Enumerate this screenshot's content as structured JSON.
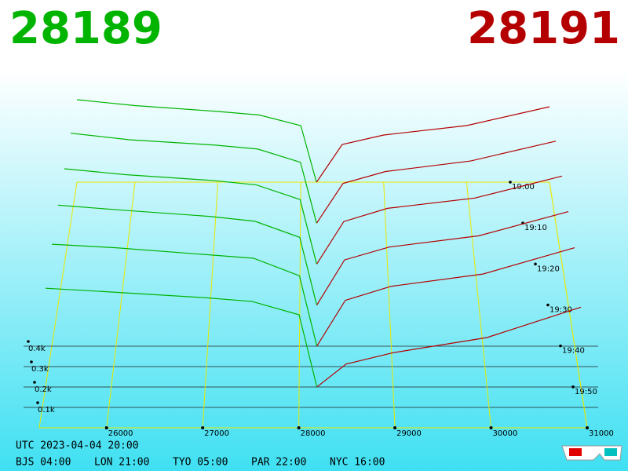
{
  "chart_data": {
    "type": "depth3d",
    "bid_price": 28189,
    "ask_price": 28191,
    "bid_color": "#00b400",
    "ask_color": "#b40000",
    "xlim": [
      25300,
      31000
    ],
    "xticks": [
      26000,
      27000,
      28000,
      29000,
      30000,
      31000
    ],
    "depth_ticks": [
      {
        "value": 100,
        "label": "0.1k"
      },
      {
        "value": 200,
        "label": "0.2k"
      },
      {
        "value": 300,
        "label": "0.3k"
      },
      {
        "value": 400,
        "label": "0.4k"
      }
    ],
    "bid_prices": [
      25300,
      26000,
      27000,
      27500,
      28000,
      28189
    ],
    "ask_prices": [
      28191,
      28500,
      29000,
      30000,
      31000
    ],
    "series": [
      {
        "name": "19:00",
        "bids": [
          700,
          650,
          600,
          570,
          480,
          0
        ],
        "asks": [
          0,
          320,
          400,
          480,
          640
        ]
      },
      {
        "name": "19:10",
        "bids": [
          680,
          630,
          590,
          560,
          460,
          0
        ],
        "asks": [
          0,
          300,
          390,
          470,
          620
        ]
      },
      {
        "name": "19:20",
        "bids": [
          650,
          610,
          570,
          540,
          440,
          0
        ],
        "asks": [
          0,
          290,
          380,
          450,
          600
        ]
      },
      {
        "name": "19:30",
        "bids": [
          620,
          590,
          550,
          520,
          420,
          0
        ],
        "asks": [
          0,
          280,
          360,
          430,
          580
        ]
      },
      {
        "name": "19:40",
        "bids": [
          580,
          560,
          520,
          500,
          400,
          0
        ],
        "asks": [
          0,
          260,
          340,
          410,
          560
        ]
      },
      {
        "name": "19:50",
        "bids": [
          520,
          500,
          470,
          450,
          380,
          0
        ],
        "asks": [
          0,
          120,
          180,
          260,
          420
        ]
      }
    ],
    "timestamp": "UTC 2023-04-04 20:00",
    "clocks": [
      "BJS 04:00",
      "LON 21:00",
      "TYO 05:00",
      "PAR 22:00",
      "NYC 16:00"
    ]
  }
}
